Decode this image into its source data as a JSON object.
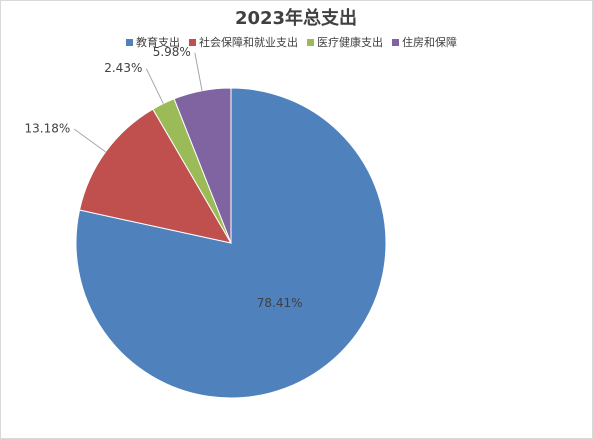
{
  "chart_data": {
    "type": "pie",
    "title": "2023年总支出",
    "categories": [
      "教育支出",
      "社会保障和就业支出",
      "医疗健康支出",
      "住房和保障"
    ],
    "values": [
      78.41,
      13.18,
      2.43,
      5.98
    ],
    "value_labels": [
      "78.41%",
      "13.18%",
      "2.43%",
      "5.98%"
    ],
    "colors": [
      "#4f81bd",
      "#c0504d",
      "#9bbb59",
      "#8064a2"
    ],
    "legend": "top"
  }
}
